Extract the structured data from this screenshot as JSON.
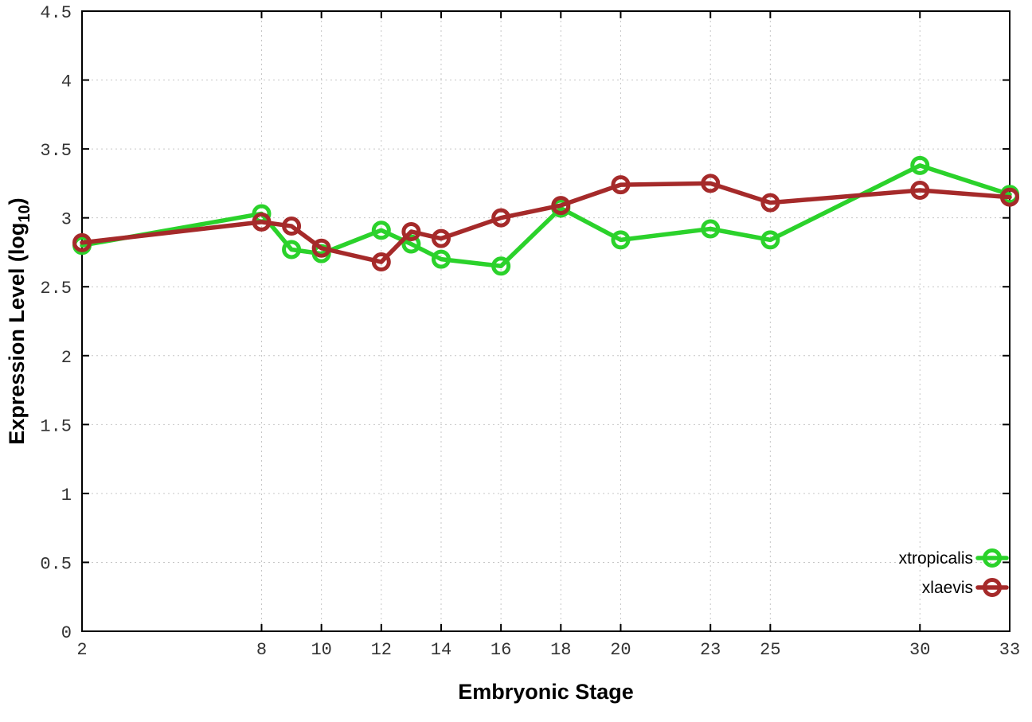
{
  "chart_data": {
    "type": "line",
    "title": "",
    "xlabel": "Embryonic Stage",
    "ylabel_parts": {
      "base": "Expression Level (log",
      "sub": "10",
      "close": ")"
    },
    "xlim": [
      2,
      33
    ],
    "ylim": [
      0,
      4.5
    ],
    "grid": true,
    "legend_position": "bottom-right",
    "x": [
      2,
      8,
      9,
      10,
      12,
      13,
      14,
      16,
      18,
      20,
      23,
      25,
      30,
      33
    ],
    "xtick_values": [
      2,
      8,
      10,
      12,
      14,
      16,
      18,
      20,
      23,
      25,
      30,
      33
    ],
    "xtick_labels": [
      "2",
      "8",
      "10",
      "12",
      "14",
      "16",
      "18",
      "20",
      "23",
      "25",
      "30",
      "33"
    ],
    "ytick_values": [
      0,
      0.5,
      1,
      1.5,
      2,
      2.5,
      3,
      3.5,
      4,
      4.5
    ],
    "ytick_labels": [
      "0",
      "0.5",
      "1",
      "1.5",
      "2",
      "2.5",
      "3",
      "3.5",
      "4",
      "4.5"
    ],
    "series": [
      {
        "name": "xtropicalis",
        "color": "#2bd22b",
        "marker": "open-circle",
        "values": [
          2.8,
          3.03,
          2.77,
          2.74,
          2.91,
          2.81,
          2.7,
          2.65,
          3.07,
          2.84,
          2.92,
          2.84,
          3.38,
          3.17
        ]
      },
      {
        "name": "xlaevis",
        "color": "#a52a2a",
        "marker": "open-circle",
        "values": [
          2.82,
          2.97,
          2.94,
          2.78,
          2.68,
          2.9,
          2.85,
          3.0,
          3.09,
          3.24,
          3.25,
          3.11,
          3.2,
          3.15
        ]
      }
    ],
    "colors": {
      "background": "#ffffff",
      "border": "#000000",
      "tick_label": "#333333",
      "axis_label": "#000000",
      "grid": "#c6c6c6"
    }
  }
}
